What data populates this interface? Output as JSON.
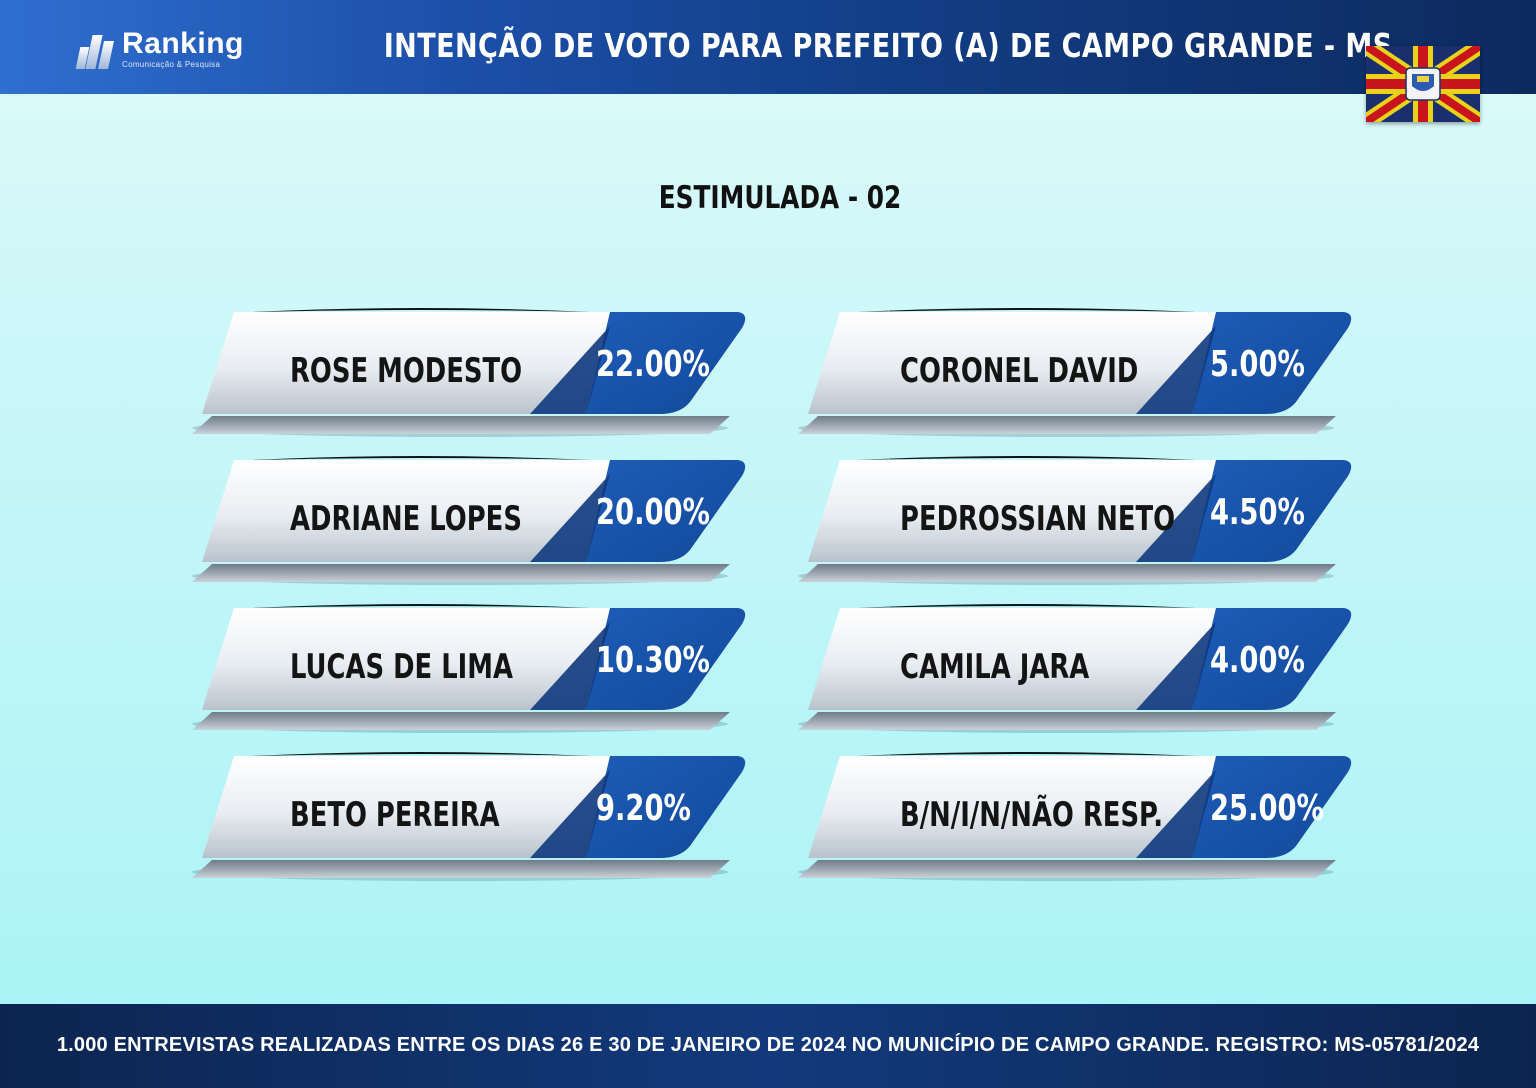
{
  "header": {
    "brand": "Ranking",
    "brand_tagline": "Comunicação & Pesquisa",
    "title": "INTENÇÃO DE VOTO PARA PREFEITO (A) DE CAMPO GRANDE - MS"
  },
  "subtitle": "ESTIMULADA - 02",
  "colors": {
    "header_bg": "#1c4fa8",
    "value_tab": "#134a9a",
    "label_plate": "#e8ecf1",
    "page_bg": "#c4f6f8"
  },
  "chart_data": {
    "type": "table",
    "title": "ESTIMULADA - 02",
    "unit": "%",
    "rows": [
      {
        "name": "ROSE MODESTO",
        "value": 22.0,
        "label": "22.00%"
      },
      {
        "name": "ADRIANE LOPES",
        "value": 20.0,
        "label": "20.00%"
      },
      {
        "name": "LUCAS DE LIMA",
        "value": 10.3,
        "label": "10.30%"
      },
      {
        "name": "BETO PEREIRA",
        "value": 9.2,
        "label": "9.20%"
      },
      {
        "name": "CORONEL DAVID",
        "value": 5.0,
        "label": "5.00%"
      },
      {
        "name": "PEDROSSIAN NETO",
        "value": 4.5,
        "label": "4.50%"
      },
      {
        "name": "CAMILA JARA",
        "value": 4.0,
        "label": "4.00%"
      },
      {
        "name": "B/N/I/N/NÃO RESP.",
        "value": 25.0,
        "label": "25.00%"
      }
    ]
  },
  "footer": {
    "note": "1.000 ENTREVISTAS REALIZADAS ENTRE OS DIAS 26 E 30 DE JANEIRO DE 2024 NO MUNICÍPIO DE CAMPO GRANDE. REGISTRO: MS-05781/2024"
  }
}
